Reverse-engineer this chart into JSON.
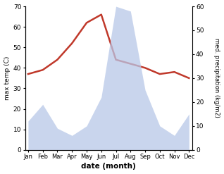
{
  "months": [
    "Jan",
    "Feb",
    "Mar",
    "Apr",
    "May",
    "Jun",
    "Jul",
    "Aug",
    "Sep",
    "Oct",
    "Nov",
    "Dec"
  ],
  "x": [
    0,
    1,
    2,
    3,
    4,
    5,
    6,
    7,
    8,
    9,
    10,
    11
  ],
  "temperature": [
    37,
    39,
    44,
    52,
    62,
    66,
    44,
    42,
    40,
    37,
    38,
    35
  ],
  "precipitation": [
    12,
    19,
    9,
    6,
    10,
    22,
    60,
    58,
    25,
    10,
    6,
    15
  ],
  "temp_ylim": [
    0,
    70
  ],
  "temp_yticks": [
    0,
    10,
    20,
    30,
    40,
    50,
    60,
    70
  ],
  "precip_ylim": [
    0,
    60
  ],
  "precip_yticks": [
    0,
    10,
    20,
    30,
    40,
    50,
    60
  ],
  "temp_color": "#c0392b",
  "precip_fill_color": "#b8c8e8",
  "ylabel_left": "max temp (C)",
  "ylabel_right": "med. precipitation (kg/m2)",
  "xlabel": "date (month)",
  "bg_color": "#ffffff",
  "temp_linewidth": 1.8
}
